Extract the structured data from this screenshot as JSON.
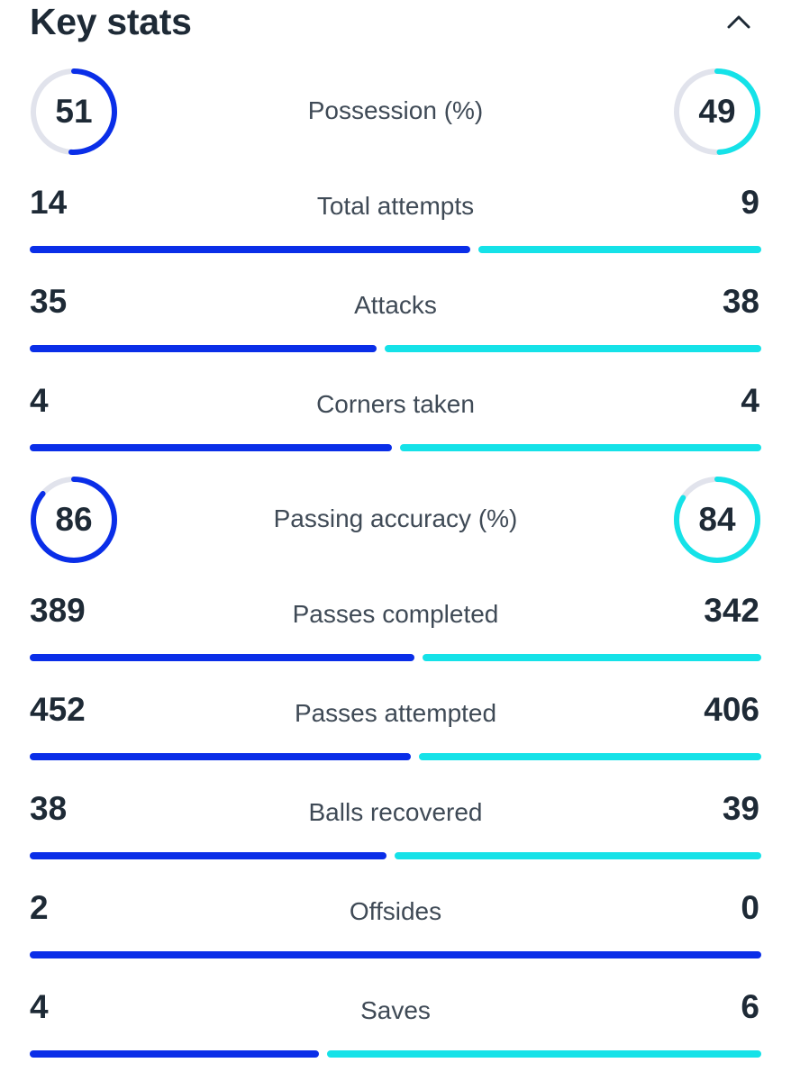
{
  "header": {
    "title": "Key stats"
  },
  "colors": {
    "home": "#0a2ee8",
    "away": "#15e2e8",
    "track": "#e1e3ec"
  },
  "stats": {
    "possession": {
      "label": "Possession (%)",
      "home": "51",
      "away": "49"
    },
    "total_attempts": {
      "label": "Total attempts",
      "home": "14",
      "away": "9"
    },
    "attacks": {
      "label": "Attacks",
      "home": "35",
      "away": "38"
    },
    "corners_taken": {
      "label": "Corners taken",
      "home": "4",
      "away": "4"
    },
    "passing_accuracy": {
      "label": "Passing accuracy (%)",
      "home": "86",
      "away": "84"
    },
    "passes_completed": {
      "label": "Passes completed",
      "home": "389",
      "away": "342"
    },
    "passes_attempted": {
      "label": "Passes attempted",
      "home": "452",
      "away": "406"
    },
    "balls_recovered": {
      "label": "Balls recovered",
      "home": "38",
      "away": "39"
    },
    "offsides": {
      "label": "Offsides",
      "home": "2",
      "away": "0"
    },
    "saves": {
      "label": "Saves",
      "home": "4",
      "away": "6"
    }
  }
}
